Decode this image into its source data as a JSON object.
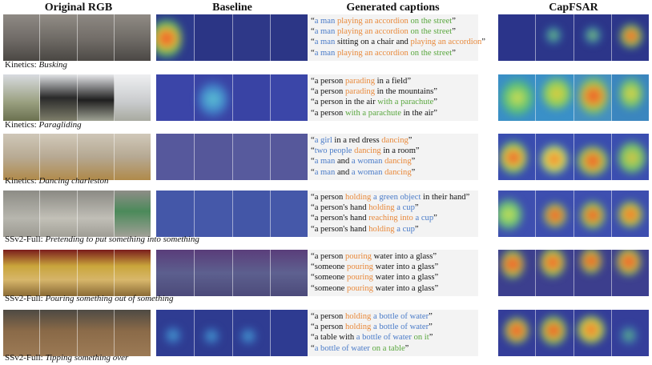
{
  "headers": {
    "rgb": "Original RGB",
    "baseline": "Baseline",
    "captions": "Generated captions",
    "capfsar": "CapFSAR"
  },
  "colors": {
    "orange": "#e8893b",
    "blue": "#4a7bc8",
    "green": "#5aa73f",
    "caption_bg": "#f3f3f3"
  },
  "rows": [
    {
      "label_prefix": "Kinetics: ",
      "label_class": "Busking",
      "captions": [
        [
          {
            "t": "“"
          },
          {
            "t": "a man",
            "c": "b"
          },
          {
            "t": " "
          },
          {
            "t": "playing an accordion",
            "c": "o"
          },
          {
            "t": " "
          },
          {
            "t": "on the street",
            "c": "g"
          },
          {
            "t": "”"
          }
        ],
        [
          {
            "t": "“"
          },
          {
            "t": "a man",
            "c": "b"
          },
          {
            "t": " "
          },
          {
            "t": "playing an accordion",
            "c": "o"
          },
          {
            "t": " "
          },
          {
            "t": "on the street",
            "c": "g"
          },
          {
            "t": "”"
          }
        ],
        [
          {
            "t": "“"
          },
          {
            "t": "a man",
            "c": "b"
          },
          {
            "t": " sitting on a chair and "
          },
          {
            "t": "playing an accordion",
            "c": "o"
          },
          {
            "t": "”"
          }
        ],
        [
          {
            "t": "“"
          },
          {
            "t": "a man",
            "c": "b"
          },
          {
            "t": " "
          },
          {
            "t": "playing an accordion",
            "c": "o"
          },
          {
            "t": " "
          },
          {
            "t": "on the street",
            "c": "g"
          },
          {
            "t": "”"
          }
        ]
      ]
    },
    {
      "label_prefix": "Kinetics: ",
      "label_class": "Paragliding",
      "captions": [
        [
          {
            "t": "“a person "
          },
          {
            "t": "parading",
            "c": "o"
          },
          {
            "t": " in a field”"
          }
        ],
        [
          {
            "t": "“a person "
          },
          {
            "t": "parading",
            "c": "o"
          },
          {
            "t": " in the mountains”"
          }
        ],
        [
          {
            "t": "“a person in the air "
          },
          {
            "t": "with a parachute",
            "c": "g"
          },
          {
            "t": "”"
          }
        ],
        [
          {
            "t": "“a person "
          },
          {
            "t": "with a parachute",
            "c": "g"
          },
          {
            "t": " in the air”"
          }
        ]
      ]
    },
    {
      "label_prefix": "Kinetics: ",
      "label_class": "Dancing charleston",
      "captions": [
        [
          {
            "t": "“"
          },
          {
            "t": "a girl",
            "c": "b"
          },
          {
            "t": " in a red dress "
          },
          {
            "t": "dancing",
            "c": "o"
          },
          {
            "t": "”"
          }
        ],
        [
          {
            "t": "“"
          },
          {
            "t": "two people",
            "c": "b"
          },
          {
            "t": " "
          },
          {
            "t": "dancing",
            "c": "o"
          },
          {
            "t": " in a room”"
          }
        ],
        [
          {
            "t": "“"
          },
          {
            "t": "a man",
            "c": "b"
          },
          {
            "t": " and "
          },
          {
            "t": "a woman",
            "c": "b"
          },
          {
            "t": " "
          },
          {
            "t": "dancing",
            "c": "o"
          },
          {
            "t": "”"
          }
        ],
        [
          {
            "t": "“"
          },
          {
            "t": "a man",
            "c": "b"
          },
          {
            "t": " and "
          },
          {
            "t": "a woman",
            "c": "b"
          },
          {
            "t": " "
          },
          {
            "t": "dancing",
            "c": "o"
          },
          {
            "t": "”"
          }
        ]
      ]
    },
    {
      "label_prefix": "SSv2-Full: ",
      "label_class": "Pretending to put something into something",
      "captions": [
        [
          {
            "t": "“a person "
          },
          {
            "t": "holding",
            "c": "o"
          },
          {
            "t": " "
          },
          {
            "t": "a green object",
            "c": "b"
          },
          {
            "t": " in their hand”"
          }
        ],
        [
          {
            "t": "“a person's hand "
          },
          {
            "t": "holding",
            "c": "o"
          },
          {
            "t": " "
          },
          {
            "t": "a cup",
            "c": "b"
          },
          {
            "t": "”"
          }
        ],
        [
          {
            "t": "“a person's hand "
          },
          {
            "t": "reaching into",
            "c": "o"
          },
          {
            "t": " "
          },
          {
            "t": "a cup",
            "c": "b"
          },
          {
            "t": "”"
          }
        ],
        [
          {
            "t": "“a person's hand "
          },
          {
            "t": "holding",
            "c": "o"
          },
          {
            "t": " "
          },
          {
            "t": "a cup",
            "c": "b"
          },
          {
            "t": "”"
          }
        ]
      ]
    },
    {
      "label_prefix": "SSv2-Full: ",
      "label_class": "Pouring something out of something",
      "captions": [
        [
          {
            "t": "“a person "
          },
          {
            "t": "pouring",
            "c": "o"
          },
          {
            "t": " water into a glass”"
          }
        ],
        [
          {
            "t": "“someone "
          },
          {
            "t": "pouring",
            "c": "o"
          },
          {
            "t": " water into a glass”"
          }
        ],
        [
          {
            "t": "“someone "
          },
          {
            "t": "pouring",
            "c": "o"
          },
          {
            "t": " water into a glass”"
          }
        ],
        [
          {
            "t": "“someone "
          },
          {
            "t": "pouring",
            "c": "o"
          },
          {
            "t": " water into a glass”"
          }
        ]
      ]
    },
    {
      "label_prefix": "SSv2-Full: ",
      "label_class": "Tipping something over",
      "captions": [
        [
          {
            "t": "“a person "
          },
          {
            "t": "holding",
            "c": "o"
          },
          {
            "t": " "
          },
          {
            "t": "a bottle of water",
            "c": "b"
          },
          {
            "t": "”"
          }
        ],
        [
          {
            "t": "“a person "
          },
          {
            "t": "holding",
            "c": "o"
          },
          {
            "t": " "
          },
          {
            "t": "a bottle of water",
            "c": "b"
          },
          {
            "t": "”"
          }
        ],
        [
          {
            "t": "“a table with "
          },
          {
            "t": "a bottle of water",
            "c": "b"
          },
          {
            "t": " "
          },
          {
            "t": "on it",
            "c": "g"
          },
          {
            "t": "”"
          }
        ],
        [
          {
            "t": "“"
          },
          {
            "t": "a bottle of water",
            "c": "b"
          },
          {
            "t": " "
          },
          {
            "t": "on a table",
            "c": "g"
          },
          {
            "t": "”"
          }
        ]
      ]
    }
  ]
}
